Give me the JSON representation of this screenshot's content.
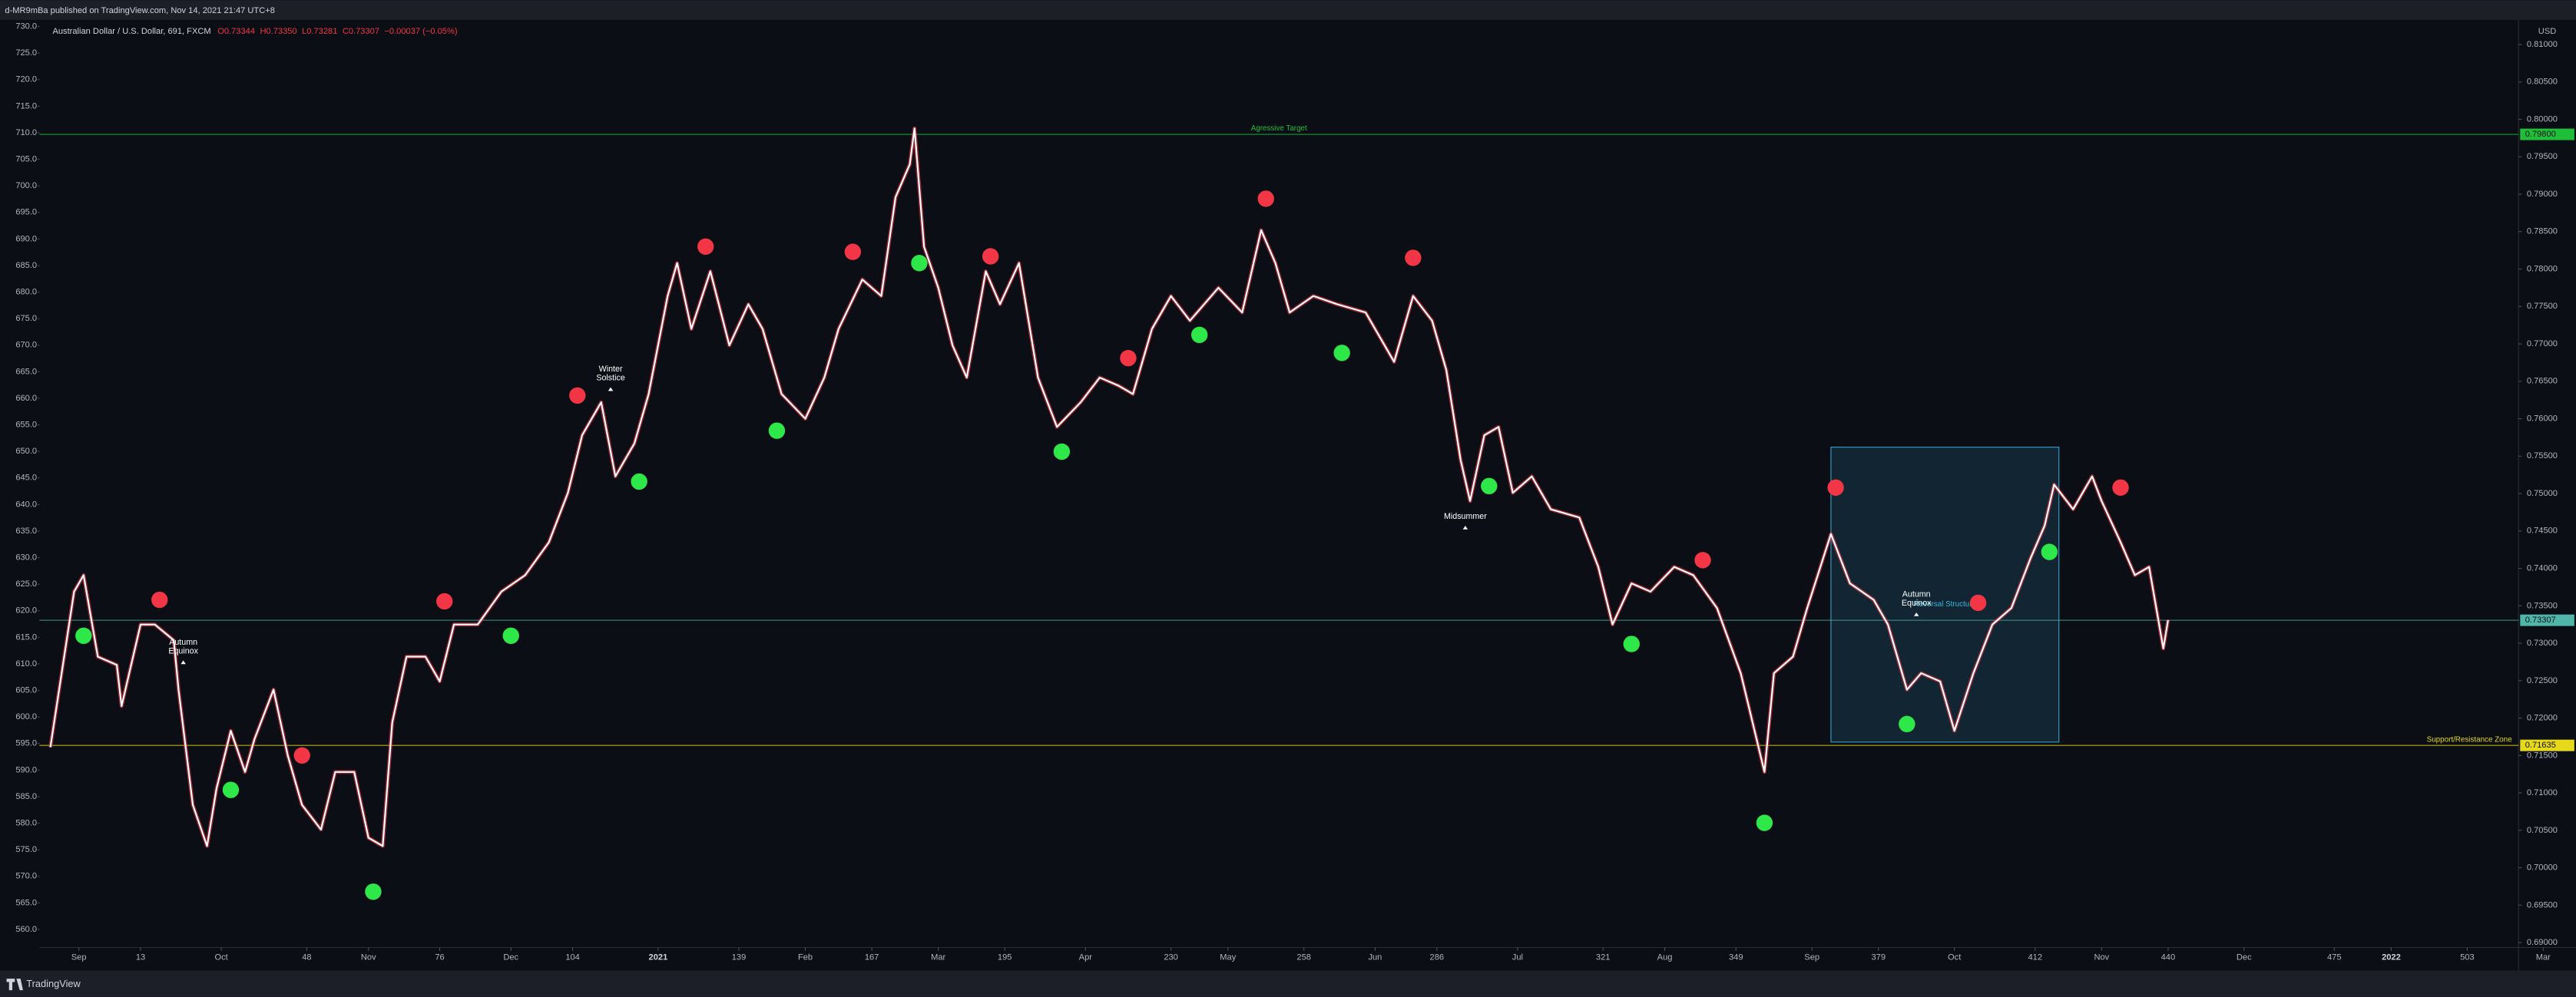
{
  "publisher": "d-MR9mBa published on TradingView.com, Nov 14, 2021 21:47 UTC+8",
  "footer": "TradingView",
  "chart_data": {
    "type": "line",
    "title": "Australian Dollar / U.S. Dollar, 691, FXCM",
    "ohlc": [
      "O0.73344",
      "H0.73350",
      "L0.73281",
      "C0.73307",
      "−0.00037 (−0.05%)"
    ],
    "currency": "USD",
    "x": [
      -6,
      -1,
      1,
      4,
      8,
      9,
      13,
      16,
      20,
      21,
      24,
      27,
      29,
      32,
      35,
      37,
      41,
      44,
      47,
      51,
      54,
      58,
      61,
      64,
      66,
      69,
      73,
      76,
      79,
      84,
      89,
      94,
      99,
      103,
      106,
      110,
      113,
      117,
      120,
      124,
      126,
      129,
      133,
      137,
      141,
      144,
      148,
      153,
      157,
      160,
      165,
      169,
      172,
      175,
      176,
      178,
      181,
      184,
      187,
      191,
      194,
      198,
      202,
      206,
      211,
      215,
      219,
      222,
      226,
      230,
      234,
      240,
      245,
      249,
      252,
      255,
      260,
      265,
      271,
      277,
      281,
      285,
      288,
      291,
      293,
      296,
      299,
      302,
      306,
      310,
      316,
      320,
      323,
      327,
      331,
      336,
      340,
      345,
      350,
      355,
      357,
      361,
      364,
      369,
      373,
      378,
      381,
      385,
      388,
      392,
      395,
      399,
      403,
      407,
      411,
      414,
      416,
      420,
      424,
      426,
      430,
      433,
      436,
      439,
      440
    ],
    "series": [
      {
        "color": "#ffffff",
        "values": [
          0.7161,
          0.7369,
          0.7391,
          0.7282,
          0.7271,
          0.7216,
          0.7325,
          0.7325,
          0.7304,
          0.7238,
          0.7084,
          0.7029,
          0.7106,
          0.7183,
          0.7128,
          0.7172,
          0.7238,
          0.715,
          0.7084,
          0.7051,
          0.7128,
          0.7128,
          0.704,
          0.7029,
          0.7194,
          0.7282,
          0.7282,
          0.7249,
          0.7325,
          0.7325,
          0.7369,
          0.7391,
          0.7435,
          0.7501,
          0.7578,
          0.7622,
          0.7523,
          0.7567,
          0.7633,
          0.7764,
          0.7808,
          0.772,
          0.7797,
          0.7698,
          0.7753,
          0.772,
          0.7633,
          0.76,
          0.7655,
          0.772,
          0.7786,
          0.7764,
          0.7896,
          0.794,
          0.7988,
          0.783,
          0.7775,
          0.7698,
          0.7655,
          0.7797,
          0.7753,
          0.7808,
          0.7655,
          0.7589,
          0.7622,
          0.7655,
          0.7644,
          0.7633,
          0.772,
          0.7764,
          0.7731,
          0.7775,
          0.7742,
          0.7852,
          0.7808,
          0.7742,
          0.7764,
          0.7753,
          0.7742,
          0.7676,
          0.7764,
          0.7731,
          0.7665,
          0.7545,
          0.749,
          0.7578,
          0.7589,
          0.7501,
          0.7523,
          0.7479,
          0.7468,
          0.7402,
          0.7325,
          0.738,
          0.7369,
          0.7402,
          0.7391,
          0.7347,
          0.726,
          0.7128,
          0.726,
          0.7282,
          0.7347,
          0.7446,
          0.738,
          0.7358,
          0.7325,
          0.7238,
          0.726,
          0.7249,
          0.7183,
          0.726,
          0.7325,
          0.7347,
          0.7413,
          0.7457,
          0.7512,
          0.7479,
          0.7523,
          0.749,
          0.7435,
          0.7391,
          0.7402,
          0.7293,
          0.7331
        ]
      }
    ],
    "markers": [
      {
        "color": "#f23645",
        "x": [
          17,
          47,
          77,
          105,
          132,
          163,
          192,
          221,
          250,
          281,
          342,
          370,
          400,
          430
        ],
        "y": [
          0.7358,
          0.715,
          0.7356,
          0.7631,
          0.783,
          0.7823,
          0.7817,
          0.7681,
          0.7894,
          0.7815,
          0.7411,
          0.7508,
          0.7354,
          0.7508
        ]
      },
      {
        "color": "#2ee84a",
        "x": [
          1,
          32,
          62,
          91,
          118,
          147,
          177,
          207,
          236,
          266,
          297,
          327,
          355,
          385,
          415
        ],
        "y": [
          0.731,
          0.7104,
          0.6968,
          0.731,
          0.7516,
          0.7584,
          0.7808,
          0.7556,
          0.7712,
          0.7688,
          0.751,
          0.7299,
          0.706,
          0.7192,
          0.7422
        ]
      }
    ],
    "hlines": [
      {
        "value": 0.798,
        "label": "0.79800",
        "text": "Agressive Target",
        "color": "#1fbf3a"
      },
      {
        "value": 0.71635,
        "label": "0.71635",
        "text": "Support/Resistance Zone",
        "color": "#e6d81a"
      },
      {
        "value": 0.73307,
        "label": "0.73307",
        "color": "#4fb6a8"
      }
    ],
    "box": {
      "x": [
        369,
        417
      ],
      "y": [
        0.7168,
        0.7562
      ],
      "text": "Reversal Structure",
      "color": "#2e8fb8"
    },
    "annotations": [
      {
        "lines": [
          "Winter",
          "Solstice"
        ],
        "x": 112,
        "y": 0.7642
      },
      {
        "lines": [
          "Autumn",
          "Equinox"
        ],
        "x": 22,
        "y": 0.7277
      },
      {
        "lines": [
          "Midsummer"
        ],
        "x": 292,
        "y": 0.7457
      },
      {
        "lines": [
          "Autumn",
          "Equinox"
        ],
        "x": 387,
        "y": 0.7341
      }
    ],
    "xlim": [
      -8.3,
      513.8
    ],
    "ylim": [
      0.68934,
      0.81307
    ],
    "y2lim": [
      556.6,
      730.93
    ],
    "xticks": [
      {
        "value": 0,
        "label": "Sep"
      },
      13,
      {
        "value": 30,
        "label": "Oct"
      },
      48,
      {
        "value": 61,
        "label": "Nov"
      },
      76,
      {
        "value": 91,
        "label": "Dec"
      },
      104,
      {
        "value": 122,
        "label": "2021"
      },
      139,
      {
        "value": 153,
        "label": "Feb"
      },
      167,
      {
        "value": 181,
        "label": "Mar"
      },
      195,
      {
        "value": 212,
        "label": "Apr"
      },
      230,
      {
        "value": 242,
        "label": "May"
      },
      258,
      {
        "value": 273,
        "label": "Jun"
      },
      286,
      {
        "value": 303,
        "label": "Jul"
      },
      321,
      {
        "value": 334,
        "label": "Aug"
      },
      349,
      {
        "value": 365,
        "label": "Sep"
      },
      379,
      {
        "value": 395,
        "label": "Oct"
      },
      412,
      {
        "value": 426,
        "label": "Nov"
      },
      440,
      {
        "value": 456,
        "label": "Dec"
      },
      475,
      {
        "value": 487,
        "label": "2022"
      },
      503,
      {
        "value": 519,
        "label": "Mar"
      }
    ],
    "yticks": [
      {
        "value": 0.69,
        "label": "0.69000"
      },
      {
        "value": 0.695,
        "label": "0.69500"
      },
      {
        "value": 0.7,
        "label": "0.70000"
      },
      {
        "value": 0.705,
        "label": "0.70500"
      },
      {
        "value": 0.71,
        "label": "0.71000"
      },
      {
        "value": 0.715,
        "label": "0.71500"
      },
      {
        "value": 0.72,
        "label": "0.72000"
      },
      {
        "value": 0.725,
        "label": "0.72500"
      },
      {
        "value": 0.73,
        "label": "0.73000"
      },
      {
        "value": 0.735,
        "label": "0.73500"
      },
      {
        "value": 0.74,
        "label": "0.74000"
      },
      {
        "value": 0.745,
        "label": "0.74500"
      },
      {
        "value": 0.75,
        "label": "0.75000"
      },
      {
        "value": 0.755,
        "label": "0.75500"
      },
      {
        "value": 0.76,
        "label": "0.76000"
      },
      {
        "value": 0.765,
        "label": "0.76500"
      },
      {
        "value": 0.77,
        "label": "0.77000"
      },
      {
        "value": 0.775,
        "label": "0.77500"
      },
      {
        "value": 0.78,
        "label": "0.78000"
      },
      {
        "value": 0.785,
        "label": "0.78500"
      },
      {
        "value": 0.79,
        "label": "0.79000"
      },
      {
        "value": 0.795,
        "label": "0.79500"
      },
      {
        "value": 0.8,
        "label": "0.80000"
      },
      {
        "value": 0.805,
        "label": "0.80500"
      },
      {
        "value": 0.81,
        "label": "0.81000"
      }
    ],
    "y2ticks": [
      {
        "value": 560,
        "label": "560.0"
      },
      {
        "value": 565,
        "label": "565.0"
      },
      {
        "value": 570,
        "label": "570.0"
      },
      {
        "value": 575,
        "label": "575.0"
      },
      {
        "value": 580,
        "label": "580.0"
      },
      {
        "value": 585,
        "label": "585.0"
      },
      {
        "value": 590,
        "label": "590.0"
      },
      {
        "value": 595,
        "label": "595.0"
      },
      {
        "value": 600,
        "label": "600.0"
      },
      {
        "value": 605,
        "label": "605.0"
      },
      {
        "value": 610,
        "label": "610.0"
      },
      {
        "value": 615,
        "label": "615.0"
      },
      {
        "value": 620,
        "label": "620.0"
      },
      {
        "value": 625,
        "label": "625.0"
      },
      {
        "value": 630,
        "label": "630.0"
      },
      {
        "value": 635,
        "label": "635.0"
      },
      {
        "value": 640,
        "label": "640.0"
      },
      {
        "value": 645,
        "label": "645.0"
      },
      {
        "value": 650,
        "label": "650.0"
      },
      {
        "value": 655,
        "label": "655.0"
      },
      {
        "value": 660,
        "label": "660.0"
      },
      {
        "value": 665,
        "label": "665.0"
      },
      {
        "value": 670,
        "label": "670.0"
      },
      {
        "value": 675,
        "label": "675.0"
      },
      {
        "value": 680,
        "label": "680.0"
      },
      {
        "value": 685,
        "label": "685.0"
      },
      {
        "value": 690,
        "label": "690.0"
      },
      {
        "value": 695,
        "label": "695.0"
      },
      {
        "value": 700,
        "label": "700.0"
      },
      {
        "value": 705,
        "label": "705.0"
      },
      {
        "value": 710,
        "label": "710.0"
      },
      {
        "value": 715,
        "label": "715.0"
      },
      {
        "value": 720,
        "label": "720.0"
      },
      {
        "value": 725,
        "label": "725.0"
      },
      {
        "value": 730,
        "label": "730.0"
      }
    ],
    "grid": false
  }
}
